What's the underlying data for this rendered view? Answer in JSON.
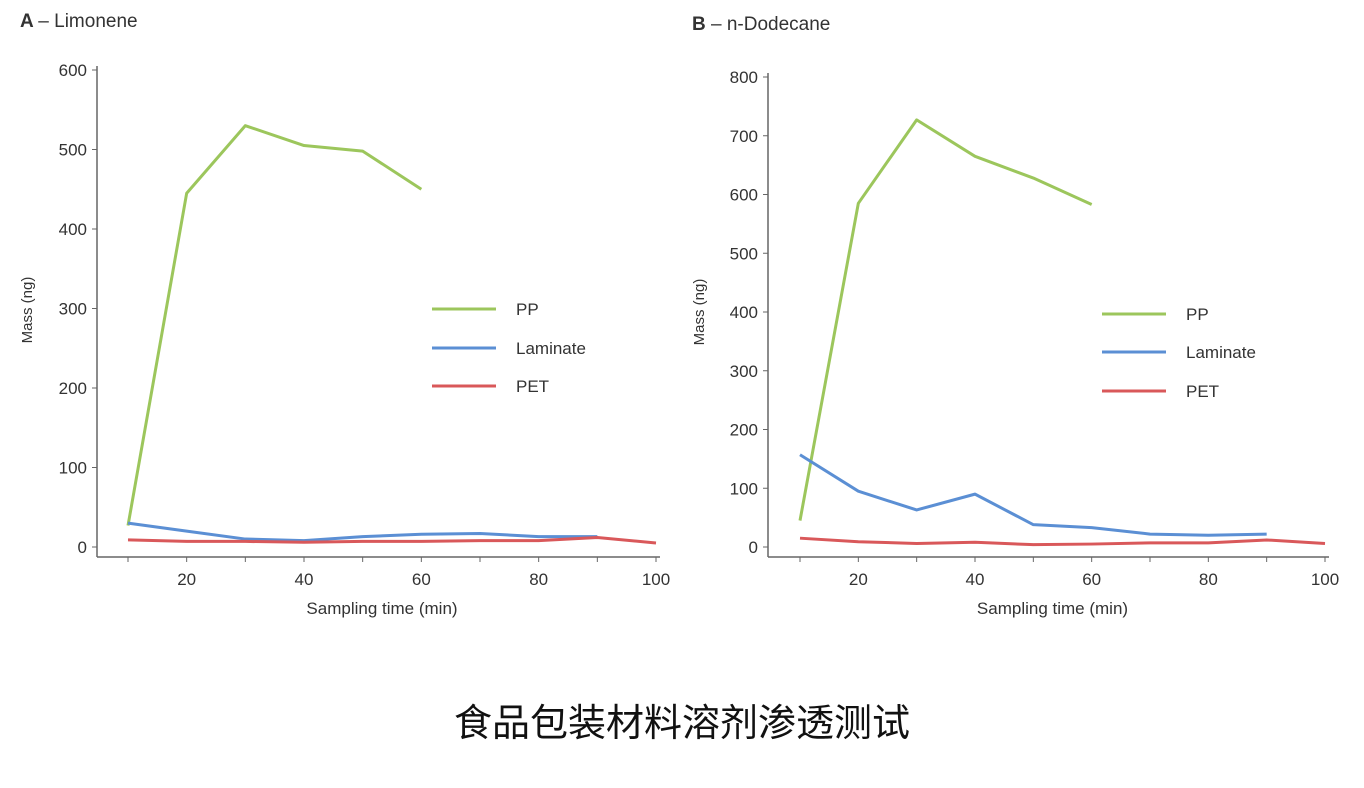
{
  "caption": "食品包装材料溶剂渗透测试",
  "chart_data": [
    {
      "type": "line",
      "panel": "A",
      "title": "– Limonene",
      "xlabel": "Sampling time (min)",
      "ylabel": "Mass (ng)",
      "xlim": [
        10,
        100
      ],
      "ylim": [
        0,
        600
      ],
      "xticks": [
        20,
        40,
        60,
        80,
        100
      ],
      "yticks": [
        0,
        100,
        200,
        300,
        400,
        500,
        600
      ],
      "legend": "center-right",
      "series": [
        {
          "name": "PP",
          "color": "#9cc65c",
          "x": [
            10,
            20,
            30,
            40,
            50,
            60
          ],
          "values": [
            27,
            445,
            530,
            505,
            498,
            450
          ]
        },
        {
          "name": "Laminate",
          "color": "#5b8fd4",
          "x": [
            10,
            20,
            30,
            40,
            50,
            60,
            70,
            80,
            90
          ],
          "values": [
            30,
            20,
            10,
            8,
            13,
            16,
            17,
            13,
            13
          ]
        },
        {
          "name": "PET",
          "color": "#d9585a",
          "x": [
            10,
            20,
            30,
            40,
            50,
            60,
            70,
            80,
            90,
            100
          ],
          "values": [
            9,
            7,
            7,
            6,
            7,
            7,
            8,
            8,
            12,
            5
          ]
        }
      ]
    },
    {
      "type": "line",
      "panel": "B",
      "title": "– n-Dodecane",
      "xlabel": "Sampling time (min)",
      "ylabel": "Mass (ng)",
      "xlim": [
        10,
        100
      ],
      "ylim": [
        0,
        800
      ],
      "xticks": [
        20,
        40,
        60,
        80,
        100
      ],
      "yticks": [
        0,
        100,
        200,
        300,
        400,
        500,
        600,
        700,
        800
      ],
      "legend": "center-right",
      "series": [
        {
          "name": "PP",
          "color": "#9cc65c",
          "x": [
            10,
            20,
            30,
            40,
            50,
            60
          ],
          "values": [
            45,
            585,
            727,
            665,
            628,
            583
          ]
        },
        {
          "name": "Laminate",
          "color": "#5b8fd4",
          "x": [
            10,
            20,
            30,
            40,
            50,
            60,
            70,
            80,
            90
          ],
          "values": [
            157,
            95,
            63,
            90,
            38,
            33,
            22,
            20,
            22
          ]
        },
        {
          "name": "PET",
          "color": "#d9585a",
          "x": [
            10,
            20,
            30,
            40,
            50,
            60,
            70,
            80,
            90,
            100
          ],
          "values": [
            15,
            9,
            6,
            8,
            4,
            5,
            7,
            7,
            12,
            6
          ]
        }
      ]
    }
  ]
}
